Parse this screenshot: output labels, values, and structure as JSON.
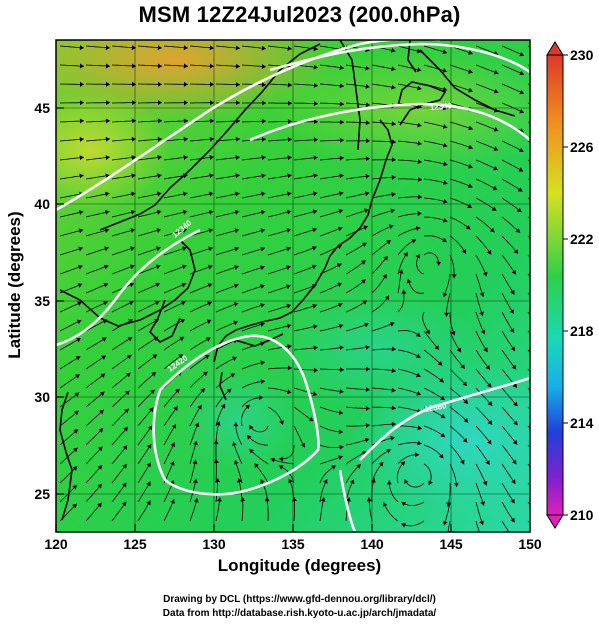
{
  "title": "MSM 12Z24Jul2023 (200.0hPa)",
  "x_axis": {
    "label": "Longitude (degrees)",
    "ticks": [
      "120",
      "125",
      "130",
      "135",
      "140",
      "145",
      "150"
    ],
    "range": [
      120,
      150
    ]
  },
  "y_axis": {
    "label": "Latitude  (degrees)",
    "ticks": [
      "25",
      "30",
      "35",
      "40",
      "45"
    ],
    "range": [
      22.5,
      48
    ]
  },
  "colorbar": {
    "ticks": [
      "230",
      "226",
      "222",
      "218",
      "214",
      "210"
    ],
    "range": [
      210,
      230
    ],
    "colors": [
      "#d020c0",
      "#2040d0",
      "#10c8e0",
      "#20d070",
      "#c8e020",
      "#f09020",
      "#e03020"
    ]
  },
  "contour_labels": [
    "12340",
    "12420",
    "12380",
    "12340"
  ],
  "credits": [
    "Drawing by DCL (https://www.gfd-dennou.org/library/dcl/)",
    "Data from http://database.rish.kyoto-u.ac.jp/arch/jmadata/"
  ]
}
